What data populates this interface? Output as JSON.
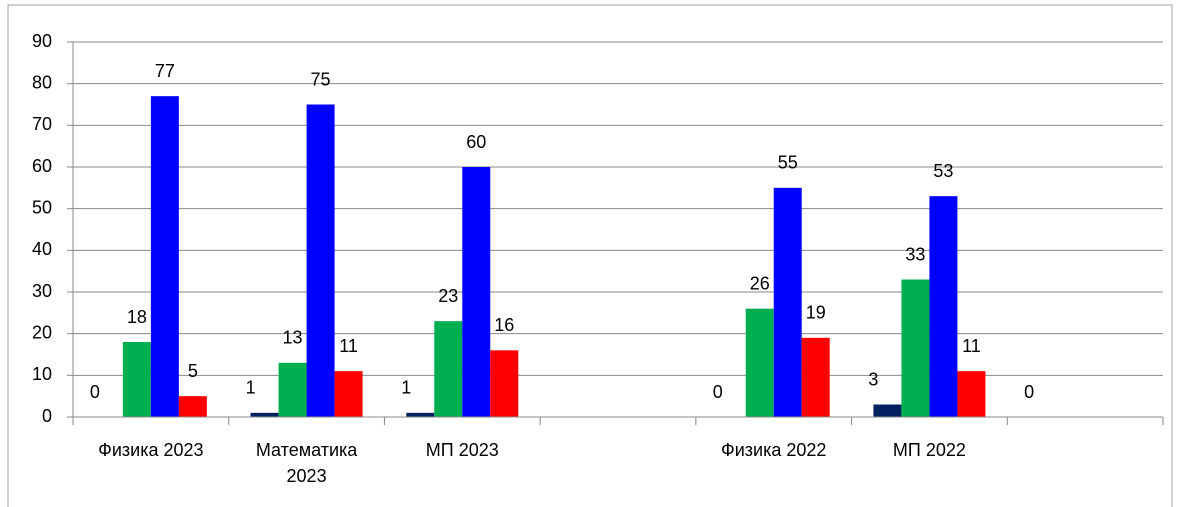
{
  "chart_data": {
    "type": "bar",
    "categories": [
      "Физика 2023",
      "Математика 2023",
      "МП 2023",
      null,
      "Физика 2022",
      "МП 2022",
      null
    ],
    "series": [
      {
        "color": "#002060",
        "values": [
          0,
          1,
          1,
          null,
          0,
          3,
          0
        ]
      },
      {
        "color": "#00b050",
        "values": [
          18,
          13,
          23,
          null,
          26,
          33,
          null
        ]
      },
      {
        "color": "#0000ff",
        "values": [
          77,
          75,
          60,
          null,
          55,
          53,
          null
        ]
      },
      {
        "color": "#ff0000",
        "values": [
          5,
          11,
          16,
          null,
          19,
          11,
          null
        ]
      }
    ],
    "ylim": [
      0,
      90
    ],
    "yticks": [
      0,
      10,
      20,
      30,
      40,
      50,
      60,
      70,
      80,
      90
    ],
    "grid": true
  }
}
